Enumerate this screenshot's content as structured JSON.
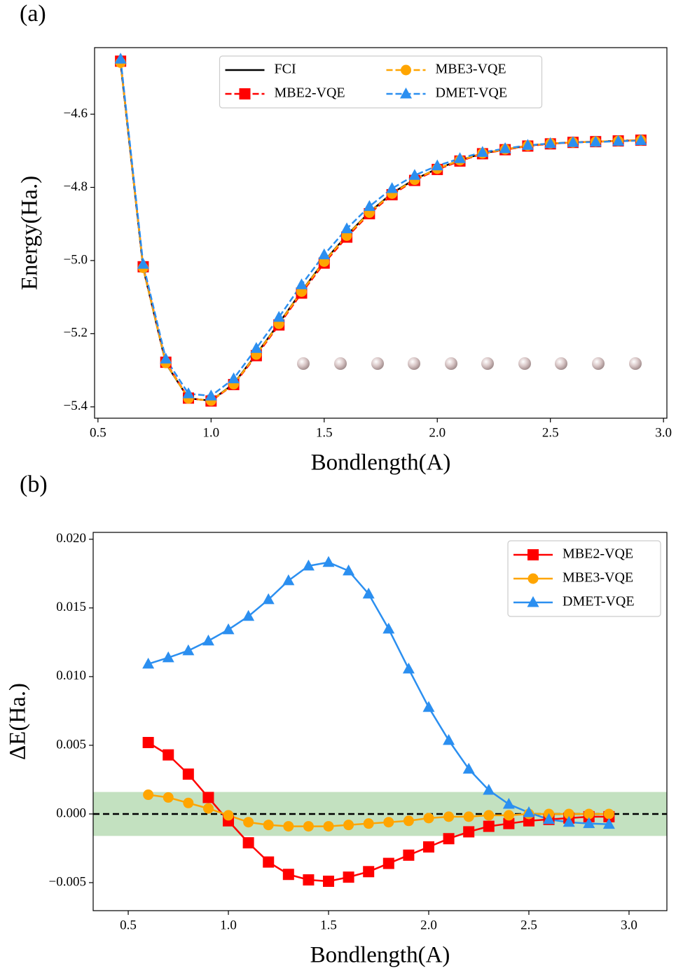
{
  "chart_data": [
    {
      "type": "line",
      "panel_label": "(a)",
      "x_label": "Bondlength(A)",
      "y_label": "Energy(Ha.)",
      "x": [
        0.6,
        0.7,
        0.8,
        0.9,
        1.0,
        1.1,
        1.2,
        1.3,
        1.4,
        1.5,
        1.6,
        1.7,
        1.8,
        1.9,
        2.0,
        2.1,
        2.2,
        2.3,
        2.4,
        2.5,
        2.6,
        2.7,
        2.8,
        2.9
      ],
      "series": [
        {
          "name": "FCI",
          "color": "#000000",
          "linestyle": "solid",
          "marker": "none",
          "values": [
            -4.46,
            -5.021,
            -5.281,
            -5.377,
            -5.383,
            -5.337,
            -5.256,
            -5.172,
            -5.084,
            -5.002,
            -4.931,
            -4.868,
            -4.816,
            -4.778,
            -4.749,
            -4.726,
            -4.707,
            -4.696,
            -4.686,
            -4.68,
            -4.677,
            -4.675,
            -4.673,
            -4.671
          ]
        },
        {
          "name": "MBE2-VQE",
          "color": "#ff0000",
          "linestyle": "dashed",
          "marker": "square",
          "values": [
            -4.455,
            -5.017,
            -5.278,
            -5.376,
            -5.384,
            -5.339,
            -5.26,
            -5.176,
            -5.089,
            -5.007,
            -4.936,
            -4.872,
            -4.82,
            -4.781,
            -4.751,
            -4.728,
            -4.708,
            -4.697,
            -4.687,
            -4.681,
            -4.677,
            -4.675,
            -4.673,
            -4.671
          ]
        },
        {
          "name": "MBE3-VQE",
          "color": "#ffa500",
          "linestyle": "dashed",
          "marker": "circle",
          "values": [
            -4.459,
            -5.02,
            -5.28,
            -5.377,
            -5.383,
            -5.338,
            -5.257,
            -5.173,
            -5.085,
            -5.003,
            -4.932,
            -4.869,
            -4.817,
            -4.779,
            -4.749,
            -4.726,
            -4.707,
            -4.696,
            -4.686,
            -4.68,
            -4.677,
            -4.675,
            -4.673,
            -4.671
          ]
        },
        {
          "name": "DMET-VQE",
          "color": "#2b8ff0",
          "linestyle": "dashed",
          "marker": "triangle",
          "values": [
            -4.449,
            -5.01,
            -5.269,
            -5.364,
            -5.37,
            -5.323,
            -5.24,
            -5.155,
            -5.066,
            -4.984,
            -4.913,
            -4.852,
            -4.803,
            -4.767,
            -4.741,
            -4.721,
            -4.704,
            -4.694,
            -4.685,
            -4.68,
            -4.677,
            -4.676,
            -4.674,
            -4.672
          ]
        }
      ],
      "xlim": [
        0.485,
        3.015
      ],
      "ylim": [
        -5.431,
        -4.418
      ],
      "xticks": [
        0.5,
        {
          "value": 1.0,
          "label": "1.0"
        },
        1.5,
        {
          "value": 2.0,
          "label": "2.0"
        },
        2.5,
        {
          "value": 3.0,
          "label": "3.0"
        }
      ],
      "yticks": [
        {
          "value": -5.4,
          "label": "−5.4"
        },
        {
          "value": -5.2,
          "label": "−5.2"
        },
        {
          "value": -5.0,
          "label": "−5.0"
        },
        {
          "value": -4.8,
          "label": "−4.8"
        },
        {
          "value": -4.6,
          "label": "−4.6"
        }
      ],
      "legend": "upper center",
      "legend_columns": 2
    },
    {
      "type": "line",
      "panel_label": "(b)",
      "x_label": "Bondlength(A)",
      "y_label": "ΔE(Ha.)",
      "x": [
        0.6,
        0.7,
        0.8,
        0.9,
        1.0,
        1.1,
        1.2,
        1.3,
        1.4,
        1.5,
        1.6,
        1.7,
        1.8,
        1.9,
        2.0,
        2.1,
        2.2,
        2.3,
        2.4,
        2.5,
        2.6,
        2.7,
        2.8,
        2.9
      ],
      "series": [
        {
          "name": "MBE2-VQE",
          "color": "#ff0000",
          "linestyle": "solid",
          "marker": "square",
          "values": [
            0.0052,
            0.0043,
            0.0029,
            0.0012,
            -0.0005,
            -0.0021,
            -0.0035,
            -0.0044,
            -0.0048,
            -0.0049,
            -0.0046,
            -0.0042,
            -0.0036,
            -0.003,
            -0.0024,
            -0.0018,
            -0.0013,
            -0.0009,
            -0.0007,
            -0.0005,
            -0.0004,
            -0.0003,
            -0.0002,
            -0.0002
          ]
        },
        {
          "name": "MBE3-VQE",
          "color": "#ffa500",
          "linestyle": "solid",
          "marker": "circle",
          "values": [
            0.0014,
            0.0012,
            0.0008,
            0.0004,
            -0.0001,
            -0.0006,
            -0.0008,
            -0.0009,
            -0.0009,
            -0.0009,
            -0.0008,
            -0.0007,
            -0.0006,
            -0.0005,
            -0.0003,
            -0.0002,
            -0.0002,
            -0.0001,
            -0.0001,
            0,
            0,
            0,
            0,
            0
          ]
        },
        {
          "name": "DMET-VQE",
          "color": "#2b8ff0",
          "linestyle": "solid",
          "marker": "triangle",
          "values": [
            0.01092,
            0.01138,
            0.01189,
            0.0126,
            0.01342,
            0.01439,
            0.01561,
            0.01699,
            0.01806,
            0.01832,
            0.0177,
            0.01602,
            0.01347,
            0.01056,
            0.00776,
            0.00536,
            0.00327,
            0.00173,
            0.00071,
            0.0001,
            -0.0004,
            -0.0006,
            -0.0007,
            -0.00075
          ]
        }
      ],
      "band": [
        -0.0016,
        0.0016
      ],
      "band_color": "#b9dcb5",
      "hline": 0,
      "xlim": [
        0.325,
        3.189
      ],
      "ylim": [
        -0.00704,
        0.0205
      ],
      "xticks": [
        0.5,
        {
          "value": 1.0,
          "label": "1.0"
        },
        1.5,
        {
          "value": 2.0,
          "label": "2.0"
        },
        2.5,
        {
          "value": 3.0,
          "label": "3.0"
        }
      ],
      "yticks": [
        {
          "value": -0.005,
          "label": "−0.005"
        },
        {
          "value": 0,
          "label": "0.000"
        },
        0.005,
        {
          "value": 0.01,
          "label": "0.010"
        },
        0.015,
        {
          "value": 0.02,
          "label": "0.020"
        }
      ],
      "legend": "upper right",
      "legend_columns": 1
    }
  ]
}
